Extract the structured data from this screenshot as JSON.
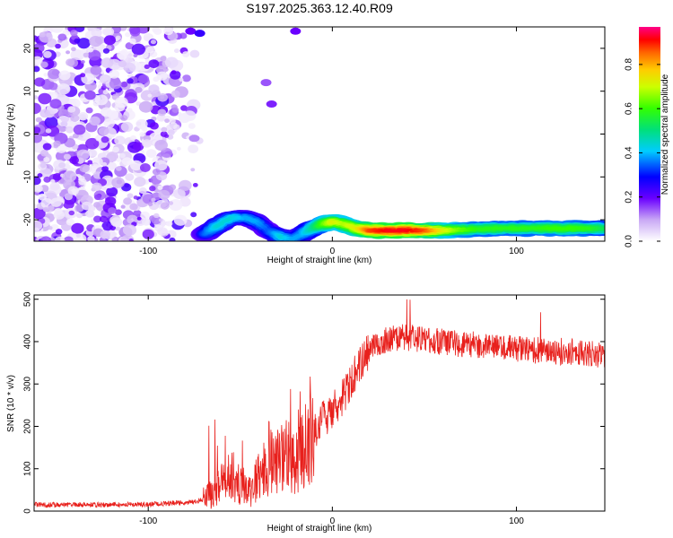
{
  "title": "S197.2025.363.12.40.R09",
  "chart_data": [
    {
      "type": "heatmap",
      "xlabel": "Height of straight line (km)",
      "ylabel": "Frequency (Hz)",
      "xlim": [
        -162,
        148
      ],
      "ylim": [
        -25,
        25
      ],
      "xticks": [
        -100,
        0,
        100
      ],
      "yticks": [
        -20,
        -10,
        0,
        10,
        20
      ],
      "colorbar": {
        "label": "Normalized spectral amplitude",
        "range": [
          0,
          0.97
        ],
        "ticks": [
          0.0,
          0.2,
          0.4,
          0.6,
          0.8
        ]
      },
      "ridge": [
        {
          "x": -70,
          "y": -23.5,
          "a": 0.35
        },
        {
          "x": -63,
          "y": -21.5,
          "a": 0.45
        },
        {
          "x": -55,
          "y": -19.5,
          "a": 0.45
        },
        {
          "x": -47,
          "y": -19.5,
          "a": 0.4
        },
        {
          "x": -41,
          "y": -20.5,
          "a": 0.4
        },
        {
          "x": -35,
          "y": -22.5,
          "a": 0.35
        },
        {
          "x": -28,
          "y": -24.0,
          "a": 0.45
        },
        {
          "x": -22,
          "y": -24.5,
          "a": 0.4
        },
        {
          "x": -17,
          "y": -23.5,
          "a": 0.4
        },
        {
          "x": -11,
          "y": -22.0,
          "a": 0.5
        },
        {
          "x": -5,
          "y": -21.0,
          "a": 0.65
        },
        {
          "x": 0,
          "y": -20.5,
          "a": 0.75
        },
        {
          "x": 6,
          "y": -21.0,
          "a": 0.7
        },
        {
          "x": 13,
          "y": -22.0,
          "a": 0.75
        },
        {
          "x": 20,
          "y": -22.5,
          "a": 0.9
        },
        {
          "x": 30,
          "y": -22.5,
          "a": 0.95
        },
        {
          "x": 40,
          "y": -22.5,
          "a": 0.95
        },
        {
          "x": 50,
          "y": -22.5,
          "a": 0.9
        },
        {
          "x": 60,
          "y": -22.5,
          "a": 0.75
        },
        {
          "x": 70,
          "y": -22.3,
          "a": 0.65
        },
        {
          "x": 80,
          "y": -22.2,
          "a": 0.6
        },
        {
          "x": 90,
          "y": -22.0,
          "a": 0.6
        },
        {
          "x": 100,
          "y": -22.0,
          "a": 0.6
        },
        {
          "x": 110,
          "y": -22.0,
          "a": 0.6
        },
        {
          "x": 120,
          "y": -22.0,
          "a": 0.62
        },
        {
          "x": 130,
          "y": -22.0,
          "a": 0.62
        },
        {
          "x": 140,
          "y": -22.0,
          "a": 0.6
        },
        {
          "x": 147,
          "y": -22.0,
          "a": 0.55
        }
      ],
      "noise_region": {
        "x": [
          -162,
          -78
        ],
        "y": [
          -25,
          25
        ],
        "a_max": 0.22
      }
    },
    {
      "type": "line",
      "xlabel": "Height of straight line (km)",
      "ylabel": "SNR (10 * v/v)",
      "xlim": [
        -162,
        148
      ],
      "ylim": [
        0,
        510
      ],
      "xticks": [
        -100,
        0,
        100
      ],
      "yticks": [
        0,
        100,
        200,
        300,
        400,
        500
      ],
      "color": "#e8201c",
      "series": [
        {
          "name": "SNR",
          "x": [
            -162,
            -140,
            -120,
            -100,
            -90,
            -80,
            -75,
            -70,
            -65,
            -60,
            -55,
            -50,
            -45,
            -40,
            -35,
            -30,
            -25,
            -20,
            -15,
            -10,
            -5,
            0,
            5,
            10,
            15,
            20,
            25,
            30,
            35,
            40,
            50,
            60,
            70,
            80,
            90,
            100,
            110,
            120,
            130,
            140,
            148
          ],
          "values": [
            15,
            15,
            15,
            16,
            18,
            20,
            22,
            28,
            45,
            70,
            90,
            60,
            50,
            80,
            110,
            120,
            130,
            120,
            150,
            185,
            215,
            240,
            265,
            300,
            350,
            380,
            395,
            405,
            410,
            410,
            405,
            400,
            395,
            392,
            388,
            385,
            380,
            378,
            375,
            372,
            370
          ]
        }
      ]
    }
  ]
}
